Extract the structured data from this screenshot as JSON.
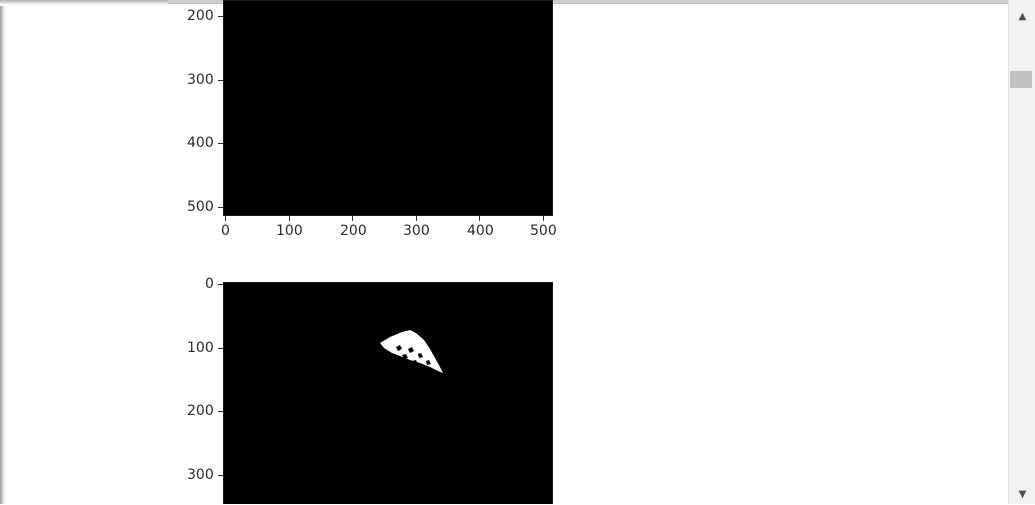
{
  "figures": [
    {
      "y_ticks": [
        "200",
        "300",
        "400",
        "500"
      ],
      "x_ticks": [
        "0",
        "100",
        "200",
        "300",
        "400",
        "500"
      ],
      "content": "all black mask"
    },
    {
      "y_ticks": [
        "0",
        "100",
        "200",
        "300"
      ],
      "content": "black mask with white blob"
    }
  ],
  "scrollbar": {
    "up_arrow": "▲",
    "down_arrow": "▼"
  },
  "colors": {
    "plot_bg": "#000000",
    "mask_fg": "#ffffff",
    "tick_text": "#2b2b2b"
  }
}
